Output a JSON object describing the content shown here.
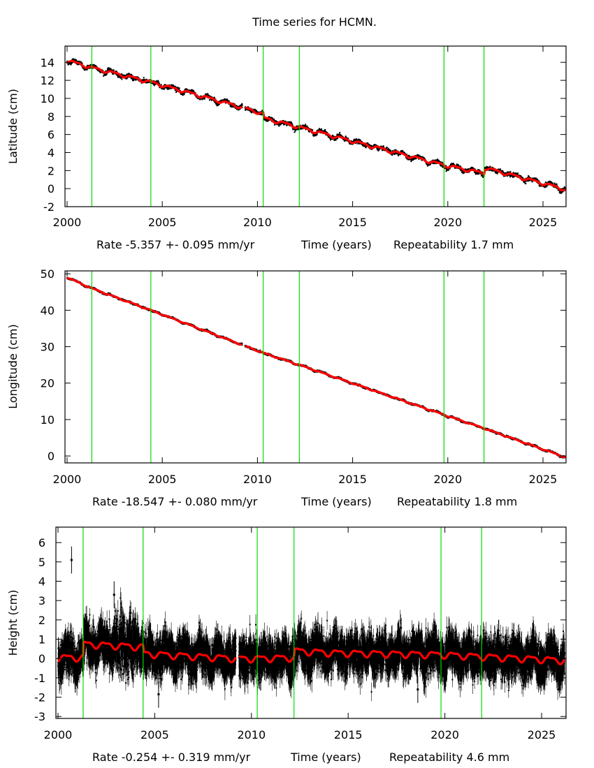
{
  "title": "Time series for HCMN.",
  "chart_data": [
    {
      "type": "scatter",
      "name": "latitude",
      "ylabel": "Latitude (cm)",
      "xlabel_left": "Rate -5.357 +- 0.095 mm/yr",
      "xlabel_center": "Time (years)",
      "xlabel_right": "Repeatability 1.7 mm",
      "xlim": [
        1999.9,
        2026.2
      ],
      "ylim": [
        -2,
        15.8
      ],
      "xticks": [
        "2000",
        "2005",
        "2010",
        "2015",
        "2020",
        "2025"
      ],
      "yticks": [
        "14",
        "12",
        "10",
        "8",
        "6",
        "4",
        "2",
        "0",
        "-2"
      ],
      "rate_mm_per_yr": -5.357,
      "repeatability_mm": 1.7,
      "noise_cm": 0.17,
      "seasonal_amp_cm": 0.15,
      "model_points": [
        [
          2000,
          14.2
        ],
        [
          2001.3,
          13.4
        ],
        [
          2004.4,
          11.8
        ],
        [
          2009.2,
          9.0
        ],
        [
          2010.3,
          8.3
        ],
        [
          2010.35,
          7.8
        ],
        [
          2012.2,
          6.8
        ],
        [
          2019.8,
          2.6
        ],
        [
          2021.9,
          1.7
        ],
        [
          2021.95,
          2.3
        ],
        [
          2026.2,
          -0.1
        ]
      ],
      "noise_bursts": [],
      "gaps": [
        [
          2009.2,
          2009.35
        ]
      ],
      "series": [
        {
          "name": "observations",
          "color": "#000000"
        },
        {
          "name": "model fit",
          "color": "#ff0000"
        },
        {
          "name": "events",
          "color": "#00dd00"
        }
      ]
    },
    {
      "type": "scatter",
      "name": "longitude",
      "ylabel": "Longitude (cm)",
      "xlabel_left": "Rate -18.547 +- 0.080 mm/yr",
      "xlabel_center": "Time (years)",
      "xlabel_right": "Repeatability 1.8 mm",
      "xlim": [
        1999.9,
        2026.2
      ],
      "ylim": [
        -1.9,
        50.8
      ],
      "xticks": [
        "2000",
        "2005",
        "2010",
        "2015",
        "2020",
        "2025"
      ],
      "yticks": [
        "50",
        "40",
        "30",
        "20",
        "10",
        "0"
      ],
      "rate_mm_per_yr": -18.547,
      "repeatability_mm": 1.8,
      "noise_cm": 0.18,
      "seasonal_amp_cm": 0.12,
      "model_points": [
        [
          2000,
          49.0
        ],
        [
          2001.3,
          46.0
        ],
        [
          2004.4,
          40.0
        ],
        [
          2010.3,
          28.3
        ],
        [
          2012.2,
          25.0
        ],
        [
          2019.8,
          11.3
        ],
        [
          2021.9,
          7.6
        ],
        [
          2026.2,
          -0.4
        ]
      ],
      "noise_bursts": [],
      "gaps": [
        [
          2009.2,
          2009.35
        ]
      ],
      "series": [
        {
          "name": "observations",
          "color": "#000000"
        },
        {
          "name": "model fit",
          "color": "#ff0000"
        },
        {
          "name": "events",
          "color": "#00dd00"
        }
      ]
    },
    {
      "type": "scatter",
      "name": "height",
      "ylabel": "Height (cm)",
      "xlabel_left": "Rate -0.254 +- 0.319 mm/yr",
      "xlabel_center": "Time (years)",
      "xlabel_right": "Repeatability 4.6 mm",
      "xlim": [
        1999.9,
        2026.2
      ],
      "ylim": [
        -3.1,
        6.8
      ],
      "xticks": [
        "2000",
        "2005",
        "2010",
        "2015",
        "2020",
        "2025"
      ],
      "yticks": [
        "6",
        "5",
        "4",
        "3",
        "2",
        "1",
        "0",
        "-1",
        "-2",
        "-3"
      ],
      "rate_mm_per_yr": -0.254,
      "repeatability_mm": 4.6,
      "noise_cm": 0.46,
      "seasonal_amp_cm": 0.15,
      "model_points": [
        [
          2000,
          0.05
        ],
        [
          2001.3,
          0.05
        ],
        [
          2001.32,
          0.75
        ],
        [
          2004.4,
          0.6
        ],
        [
          2004.45,
          0.25
        ],
        [
          2009.2,
          0.0
        ],
        [
          2010.3,
          0.0
        ],
        [
          2012.2,
          0.05
        ],
        [
          2012.25,
          0.4
        ],
        [
          2014.0,
          0.3
        ],
        [
          2019.8,
          0.2
        ],
        [
          2026.2,
          -0.1
        ]
      ],
      "noise_bursts": [
        [
          2002.8,
          2004.0,
          1.6
        ]
      ],
      "outliers": [
        [
          2000.7,
          5.1
        ],
        [
          2002.9,
          3.3
        ],
        [
          2005.2,
          -1.85
        ],
        [
          2018.6,
          -1.6
        ]
      ],
      "gaps": [
        [
          2009.2,
          2009.35
        ]
      ],
      "series": [
        {
          "name": "observations",
          "color": "#000000"
        },
        {
          "name": "model fit",
          "color": "#ff0000"
        },
        {
          "name": "events",
          "color": "#00dd00"
        }
      ]
    }
  ],
  "events": [
    2001.3,
    2004.4,
    2010.3,
    2012.2,
    2019.8,
    2021.9
  ]
}
